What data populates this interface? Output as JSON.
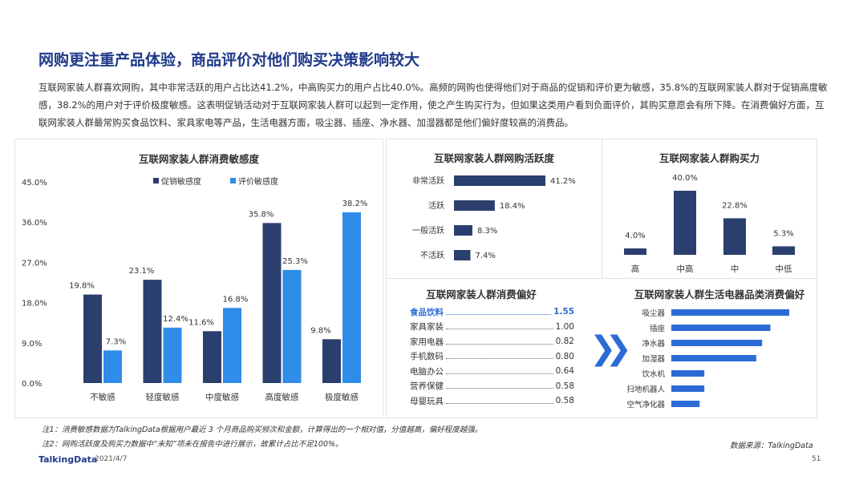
{
  "page": {
    "title": "网购更注重产品体验，商品评价对他们购买决策影响较大",
    "intro": "互联网家装人群喜欢网购，其中非常活跃的用户占比达41.2%，中高购买力的用户占比40.0%。高频的网购也使得他们对于商品的促销和评价更为敏感，35.8%的互联网家装人群对于促销高度敏感，38.2%的用户对于评价极度敏感。这表明促销活动对于互联网家装人群可以起到一定作用，使之产生购买行为，但如果这类用户看到负面评价，其购买意愿会有所下降。在消费偏好方面，互联网家装人群最常购买食品饮料、家具家电等产品，生活电器方面，吸尘器、插座、净水器、加湿器都是他们偏好度较高的消费品。",
    "note1": "注1：消费敏感数据为TalkingData根据用户最近 3 个月商品购买频次和金额，计算得出的一个相对值，分值越高，偏好程度越强。",
    "note2": "注2：网购活跃度及购买力数据中“未知”项未在报告中进行展示，故累计占比不足100%。",
    "source": "数据来源：TalkingData",
    "logo": "TalkingData",
    "date": "2021/4/7",
    "page_number": "51",
    "colors": {
      "dark_navy": "#2b3f6e",
      "bright_blue": "#2f8ce8",
      "accent_blue": "#2b6bd6"
    }
  },
  "chart_data": [
    {
      "id": "sensitivity",
      "type": "bar",
      "title": "互联网家装人群消费敏感度",
      "categories": [
        "不敏感",
        "轻度敏感",
        "中度敏感",
        "高度敏感",
        "极度敏感"
      ],
      "series": [
        {
          "name": "促销敏感度",
          "values": [
            19.8,
            23.1,
            11.6,
            35.8,
            9.8
          ],
          "labels": [
            "19.8%",
            "23.1%",
            "11.6%",
            "35.8%",
            "9.8%"
          ],
          "color": "#2b3f6e"
        },
        {
          "name": "评价敏感度",
          "values": [
            7.3,
            12.4,
            16.8,
            25.3,
            38.2
          ],
          "labels": [
            "7.3%",
            "12.4%",
            "16.8%",
            "25.3%",
            "38.2%"
          ],
          "color": "#2f8ce8"
        }
      ],
      "ylim": [
        0,
        45
      ],
      "yticks": [
        "0.0%",
        "9.0%",
        "18.0%",
        "27.0%",
        "36.0%",
        "45.0%"
      ],
      "legend": "top"
    },
    {
      "id": "activity",
      "type": "bar",
      "orientation": "horizontal",
      "title": "互联网家装人群网购活跃度",
      "categories": [
        "非常活跃",
        "活跃",
        "一般活跃",
        "不活跃"
      ],
      "values": [
        41.2,
        18.4,
        8.3,
        7.4
      ],
      "labels": [
        "41.2%",
        "18.4%",
        "8.3%",
        "7.4%"
      ],
      "color": "#2b3f6e"
    },
    {
      "id": "purchasing_power",
      "type": "bar",
      "title": "互联网家装人群购买力",
      "categories": [
        "高",
        "中高",
        "中",
        "中低"
      ],
      "values": [
        4.0,
        40.0,
        22.8,
        5.3
      ],
      "labels": [
        "4.0%",
        "40.0%",
        "22.8%",
        "5.3%"
      ],
      "color": "#2b3f6e"
    },
    {
      "id": "consumption_preference",
      "type": "table",
      "title": "互联网家装人群消费偏好",
      "rows": [
        {
          "label": "食品饮料",
          "value": "1.55",
          "highlight": true
        },
        {
          "label": "家具家装",
          "value": "1.00"
        },
        {
          "label": "家用电器",
          "value": "0.82"
        },
        {
          "label": "手机数码",
          "value": "0.80"
        },
        {
          "label": "电脑办公",
          "value": "0.64"
        },
        {
          "label": "营养保健",
          "value": "0.58"
        },
        {
          "label": "母婴玩具",
          "value": "0.58"
        }
      ]
    },
    {
      "id": "appliance_preference",
      "type": "bar",
      "orientation": "horizontal",
      "title": "互联网家装人群生活电器品类消费偏好",
      "categories": [
        "吸尘器",
        "插座",
        "净水器",
        "加湿器",
        "饮水机",
        "扫地机器人",
        "空气净化器"
      ],
      "values": [
        100,
        84,
        77,
        72,
        28,
        28,
        24
      ],
      "value_note": "relative, no printed values",
      "color": "#2b6bd6"
    }
  ]
}
